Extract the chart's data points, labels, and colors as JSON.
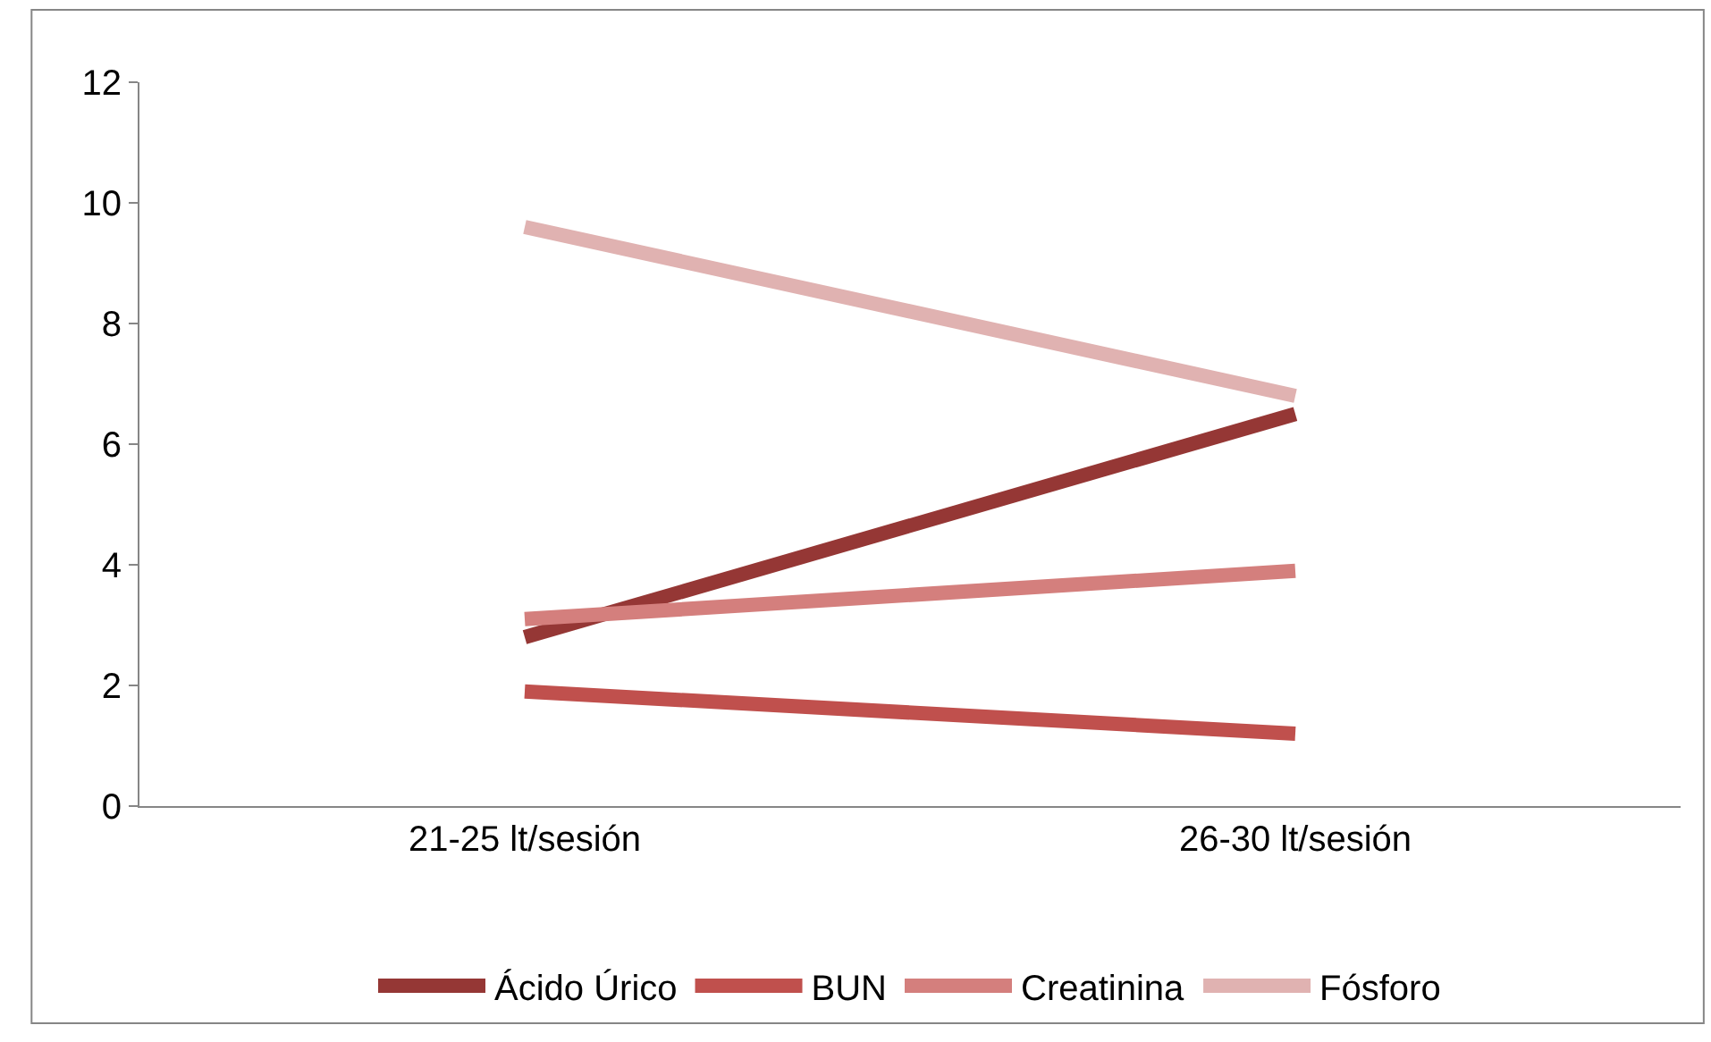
{
  "chart_data": {
    "type": "line",
    "categories": [
      "21-25 lt/sesión",
      "26-30 lt/sesión"
    ],
    "series": [
      {
        "name": "Ácido Úrico",
        "color": "#953735",
        "values": [
          2.8,
          6.5
        ]
      },
      {
        "name": "BUN",
        "color": "#c0504d",
        "values": [
          1.9,
          1.2
        ]
      },
      {
        "name": "Creatinina",
        "color": "#d47f7d",
        "values": [
          3.1,
          3.9
        ]
      },
      {
        "name": "Fósforo",
        "color": "#e0b2b1",
        "values": [
          9.6,
          6.8
        ]
      }
    ],
    "ylim": [
      0,
      12
    ],
    "yticks": [
      0,
      2,
      4,
      6,
      8,
      10,
      12
    ],
    "legend": "bottom",
    "marker": "none",
    "line_style": "solid"
  }
}
